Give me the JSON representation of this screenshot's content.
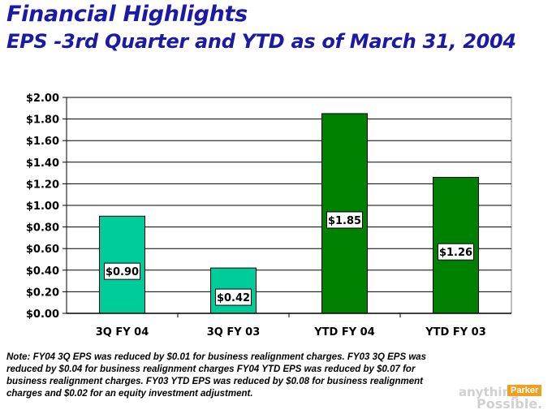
{
  "header": {
    "title": "Financial Highlights",
    "subtitle": "EPS -3rd Quarter and YTD as of March 31, 2004"
  },
  "chart_data": {
    "type": "bar",
    "title": "",
    "xlabel": "",
    "ylabel": "",
    "categories": [
      "3Q FY 04",
      "3Q FY 03",
      "YTD FY 04",
      "YTD FY 03"
    ],
    "values": [
      0.9,
      0.42,
      1.85,
      1.26
    ],
    "data_labels": [
      "$0.90",
      "$0.42",
      "$1.85",
      "$1.26"
    ],
    "bar_colors": [
      "#00cc99",
      "#00cc99",
      "#008000",
      "#008000"
    ],
    "ylim": [
      0,
      2.0
    ],
    "yticks": [
      0,
      0.2,
      0.4,
      0.6,
      0.8,
      1.0,
      1.2,
      1.4,
      1.6,
      1.8,
      2.0
    ],
    "ytick_labels": [
      "$0.00",
      "$0.20",
      "$0.40",
      "$0.60",
      "$0.80",
      "$1.00",
      "$1.20",
      "$1.40",
      "$1.60",
      "$1.80",
      "$2.00"
    ],
    "grid": true,
    "legend": "none"
  },
  "note": "Note:  FY04 3Q EPS was reduced by $0.01 for business realignment charges. FY03 3Q EPS was reduced by $0.04 for business realignment charges  FY04 YTD EPS was reduced by $0.07 for business realignment charges.  FY03 YTD EPS was reduced by $0.08 for business realignment charges and $0.02 for an equity investment adjustment.",
  "logo": {
    "text_top": "anything",
    "brand": "Parker",
    "text_bottom": "Possible."
  },
  "colors": {
    "title": "#1a1aa6",
    "bar_light": "#00cc99",
    "bar_dark": "#008000"
  }
}
